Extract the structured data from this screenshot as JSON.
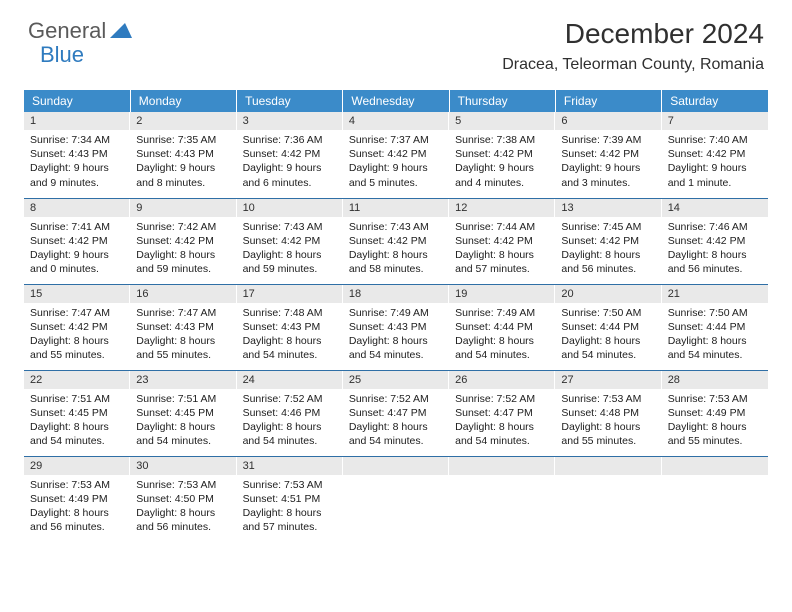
{
  "logo": {
    "general": "General",
    "blue": "Blue"
  },
  "title": "December 2024",
  "location": "Dracea, Teleorman County, Romania",
  "weekdays": [
    "Sunday",
    "Monday",
    "Tuesday",
    "Wednesday",
    "Thursday",
    "Friday",
    "Saturday"
  ],
  "colors": {
    "header_bg": "#3b8bc9",
    "header_fg": "#ffffff",
    "daynum_bg": "#e9e9e9",
    "row_border": "#2f6fa6",
    "text": "#202020",
    "logo_gray": "#5a5a5a",
    "logo_blue": "#2f7bbf"
  },
  "cells": [
    [
      {
        "n": "1",
        "sr": "Sunrise: 7:34 AM",
        "ss": "Sunset: 4:43 PM",
        "d1": "Daylight: 9 hours",
        "d2": "and 9 minutes."
      },
      {
        "n": "2",
        "sr": "Sunrise: 7:35 AM",
        "ss": "Sunset: 4:43 PM",
        "d1": "Daylight: 9 hours",
        "d2": "and 8 minutes."
      },
      {
        "n": "3",
        "sr": "Sunrise: 7:36 AM",
        "ss": "Sunset: 4:42 PM",
        "d1": "Daylight: 9 hours",
        "d2": "and 6 minutes."
      },
      {
        "n": "4",
        "sr": "Sunrise: 7:37 AM",
        "ss": "Sunset: 4:42 PM",
        "d1": "Daylight: 9 hours",
        "d2": "and 5 minutes."
      },
      {
        "n": "5",
        "sr": "Sunrise: 7:38 AM",
        "ss": "Sunset: 4:42 PM",
        "d1": "Daylight: 9 hours",
        "d2": "and 4 minutes."
      },
      {
        "n": "6",
        "sr": "Sunrise: 7:39 AM",
        "ss": "Sunset: 4:42 PM",
        "d1": "Daylight: 9 hours",
        "d2": "and 3 minutes."
      },
      {
        "n": "7",
        "sr": "Sunrise: 7:40 AM",
        "ss": "Sunset: 4:42 PM",
        "d1": "Daylight: 9 hours",
        "d2": "and 1 minute."
      }
    ],
    [
      {
        "n": "8",
        "sr": "Sunrise: 7:41 AM",
        "ss": "Sunset: 4:42 PM",
        "d1": "Daylight: 9 hours",
        "d2": "and 0 minutes."
      },
      {
        "n": "9",
        "sr": "Sunrise: 7:42 AM",
        "ss": "Sunset: 4:42 PM",
        "d1": "Daylight: 8 hours",
        "d2": "and 59 minutes."
      },
      {
        "n": "10",
        "sr": "Sunrise: 7:43 AM",
        "ss": "Sunset: 4:42 PM",
        "d1": "Daylight: 8 hours",
        "d2": "and 59 minutes."
      },
      {
        "n": "11",
        "sr": "Sunrise: 7:43 AM",
        "ss": "Sunset: 4:42 PM",
        "d1": "Daylight: 8 hours",
        "d2": "and 58 minutes."
      },
      {
        "n": "12",
        "sr": "Sunrise: 7:44 AM",
        "ss": "Sunset: 4:42 PM",
        "d1": "Daylight: 8 hours",
        "d2": "and 57 minutes."
      },
      {
        "n": "13",
        "sr": "Sunrise: 7:45 AM",
        "ss": "Sunset: 4:42 PM",
        "d1": "Daylight: 8 hours",
        "d2": "and 56 minutes."
      },
      {
        "n": "14",
        "sr": "Sunrise: 7:46 AM",
        "ss": "Sunset: 4:42 PM",
        "d1": "Daylight: 8 hours",
        "d2": "and 56 minutes."
      }
    ],
    [
      {
        "n": "15",
        "sr": "Sunrise: 7:47 AM",
        "ss": "Sunset: 4:42 PM",
        "d1": "Daylight: 8 hours",
        "d2": "and 55 minutes."
      },
      {
        "n": "16",
        "sr": "Sunrise: 7:47 AM",
        "ss": "Sunset: 4:43 PM",
        "d1": "Daylight: 8 hours",
        "d2": "and 55 minutes."
      },
      {
        "n": "17",
        "sr": "Sunrise: 7:48 AM",
        "ss": "Sunset: 4:43 PM",
        "d1": "Daylight: 8 hours",
        "d2": "and 54 minutes."
      },
      {
        "n": "18",
        "sr": "Sunrise: 7:49 AM",
        "ss": "Sunset: 4:43 PM",
        "d1": "Daylight: 8 hours",
        "d2": "and 54 minutes."
      },
      {
        "n": "19",
        "sr": "Sunrise: 7:49 AM",
        "ss": "Sunset: 4:44 PM",
        "d1": "Daylight: 8 hours",
        "d2": "and 54 minutes."
      },
      {
        "n": "20",
        "sr": "Sunrise: 7:50 AM",
        "ss": "Sunset: 4:44 PM",
        "d1": "Daylight: 8 hours",
        "d2": "and 54 minutes."
      },
      {
        "n": "21",
        "sr": "Sunrise: 7:50 AM",
        "ss": "Sunset: 4:44 PM",
        "d1": "Daylight: 8 hours",
        "d2": "and 54 minutes."
      }
    ],
    [
      {
        "n": "22",
        "sr": "Sunrise: 7:51 AM",
        "ss": "Sunset: 4:45 PM",
        "d1": "Daylight: 8 hours",
        "d2": "and 54 minutes."
      },
      {
        "n": "23",
        "sr": "Sunrise: 7:51 AM",
        "ss": "Sunset: 4:45 PM",
        "d1": "Daylight: 8 hours",
        "d2": "and 54 minutes."
      },
      {
        "n": "24",
        "sr": "Sunrise: 7:52 AM",
        "ss": "Sunset: 4:46 PM",
        "d1": "Daylight: 8 hours",
        "d2": "and 54 minutes."
      },
      {
        "n": "25",
        "sr": "Sunrise: 7:52 AM",
        "ss": "Sunset: 4:47 PM",
        "d1": "Daylight: 8 hours",
        "d2": "and 54 minutes."
      },
      {
        "n": "26",
        "sr": "Sunrise: 7:52 AM",
        "ss": "Sunset: 4:47 PM",
        "d1": "Daylight: 8 hours",
        "d2": "and 54 minutes."
      },
      {
        "n": "27",
        "sr": "Sunrise: 7:53 AM",
        "ss": "Sunset: 4:48 PM",
        "d1": "Daylight: 8 hours",
        "d2": "and 55 minutes."
      },
      {
        "n": "28",
        "sr": "Sunrise: 7:53 AM",
        "ss": "Sunset: 4:49 PM",
        "d1": "Daylight: 8 hours",
        "d2": "and 55 minutes."
      }
    ],
    [
      {
        "n": "29",
        "sr": "Sunrise: 7:53 AM",
        "ss": "Sunset: 4:49 PM",
        "d1": "Daylight: 8 hours",
        "d2": "and 56 minutes."
      },
      {
        "n": "30",
        "sr": "Sunrise: 7:53 AM",
        "ss": "Sunset: 4:50 PM",
        "d1": "Daylight: 8 hours",
        "d2": "and 56 minutes."
      },
      {
        "n": "31",
        "sr": "Sunrise: 7:53 AM",
        "ss": "Sunset: 4:51 PM",
        "d1": "Daylight: 8 hours",
        "d2": "and 57 minutes."
      },
      {
        "n": "",
        "sr": "",
        "ss": "",
        "d1": "",
        "d2": ""
      },
      {
        "n": "",
        "sr": "",
        "ss": "",
        "d1": "",
        "d2": ""
      },
      {
        "n": "",
        "sr": "",
        "ss": "",
        "d1": "",
        "d2": ""
      },
      {
        "n": "",
        "sr": "",
        "ss": "",
        "d1": "",
        "d2": ""
      }
    ]
  ]
}
